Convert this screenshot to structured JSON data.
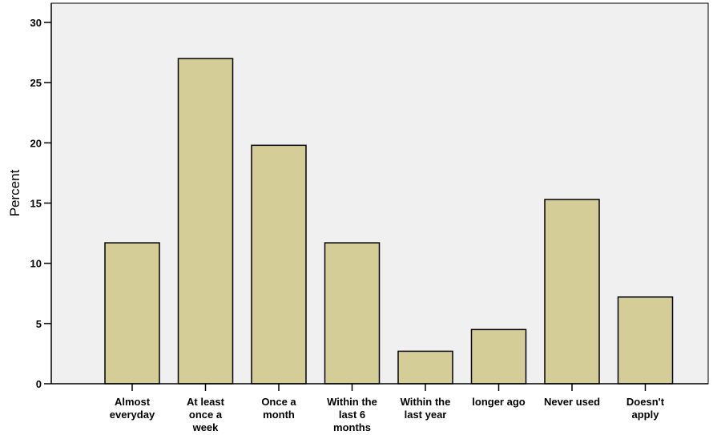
{
  "chart_data": {
    "type": "bar",
    "title": "",
    "xlabel": "",
    "ylabel": "Percent",
    "ylim": [
      0,
      30
    ],
    "yticks": [
      0,
      5,
      10,
      15,
      20,
      25,
      30
    ],
    "grid": false,
    "legend": "none",
    "categories": [
      [
        "Almost",
        "everyday"
      ],
      [
        "At least",
        "once a",
        "week"
      ],
      [
        "Once a",
        "month"
      ],
      [
        "Within the",
        "last 6",
        "months"
      ],
      [
        "Within the",
        "last year"
      ],
      [
        "longer ago"
      ],
      [
        "Never used"
      ],
      [
        "Doesn't",
        "apply"
      ]
    ],
    "values": [
      11.7,
      27.0,
      19.8,
      11.7,
      2.7,
      4.5,
      15.3,
      7.2
    ],
    "colors": {
      "bar_fill": "#D4CD98",
      "bar_stroke": "#000000",
      "plot_background": "#F0F0F0",
      "axis": "#000000"
    }
  }
}
